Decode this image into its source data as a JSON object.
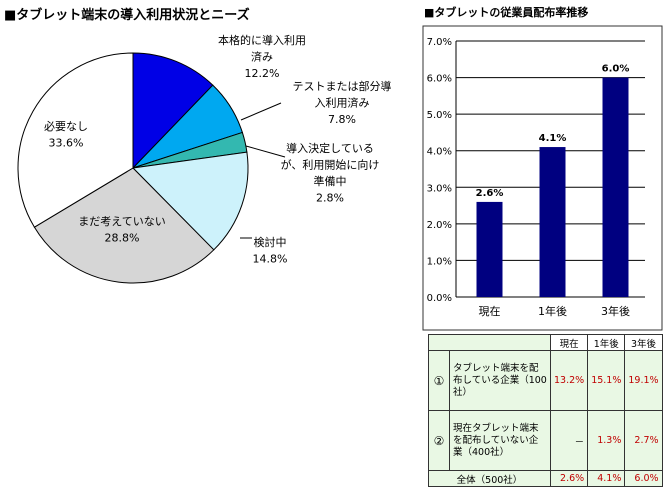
{
  "pie": {
    "title": "■タブレット端末の導入利用状況とニーズ",
    "chart_data": {
      "type": "pie",
      "slices": [
        {
          "label": [
            "本格的に導入利用",
            "済み"
          ],
          "value": 12.2,
          "value_text": "12.2%",
          "color": "#0000e6"
        },
        {
          "label": [
            "テストまたは部分導",
            "入利用済み"
          ],
          "value": 7.8,
          "value_text": "7.8%",
          "color": "#00a8f0"
        },
        {
          "label": [
            "導入決定している",
            "が、利用開始に向け",
            "準備中"
          ],
          "value": 2.8,
          "value_text": "2.8%",
          "color": "#33b8b0"
        },
        {
          "label": [
            "検討中"
          ],
          "value": 14.8,
          "value_text": "14.8%",
          "color": "#cdf2fb"
        },
        {
          "label": [
            "まだ考えていない"
          ],
          "value": 28.8,
          "value_text": "28.8%",
          "color": "#d6d6d6"
        },
        {
          "label": [
            "必要なし"
          ],
          "value": 33.6,
          "value_text": "33.6%",
          "color": "#ffffff"
        }
      ]
    }
  },
  "bar": {
    "title": "■タブレットの従業員配布率推移",
    "chart_data": {
      "type": "bar",
      "categories": [
        "現在",
        "1年後",
        "3年後"
      ],
      "values": [
        2.6,
        4.1,
        6.0
      ],
      "value_labels": [
        "2.6%",
        "4.1%",
        "6.0%"
      ],
      "ylim": [
        0,
        7
      ],
      "yticks": [
        "0.0%",
        "1.0%",
        "2.0%",
        "3.0%",
        "4.0%",
        "5.0%",
        "6.0%",
        "7.0%"
      ],
      "bar_color": "#000080",
      "grid": true
    }
  },
  "table": {
    "headers": [
      "現在",
      "1年後",
      "3年後"
    ],
    "rows": [
      {
        "index": "①",
        "label": "タブレット端末を配布している企業（100社）",
        "values": [
          "13.2%",
          "15.1%",
          "19.1%"
        ]
      },
      {
        "index": "②",
        "label": "現在タブレット端末を配布していない企業（400社）",
        "values": [
          "－",
          "1.3%",
          "2.7%"
        ]
      }
    ],
    "total": {
      "label": "全体（500社）",
      "values": [
        "2.6%",
        "4.1%",
        "6.0%"
      ]
    }
  }
}
